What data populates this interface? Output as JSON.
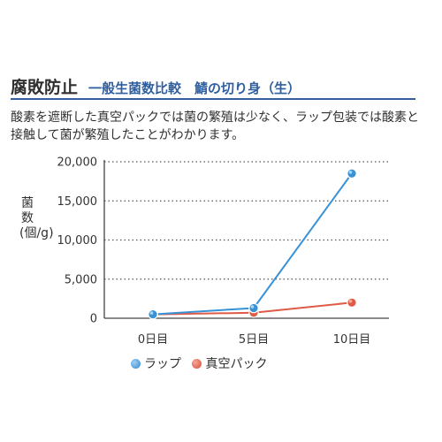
{
  "header": {
    "title": "腐敗防止",
    "subtitle": "一般生菌数比較　鯖の切り身（生）"
  },
  "description": "酸素を遮断した真空パックでは菌の繁殖は少なく、ラップ包装では酸素と接触して菌が繁殖したことがわかります。",
  "chart_data": {
    "type": "line",
    "title": "",
    "xlabel": "",
    "ylabel": "菌数(個/g)",
    "categories": [
      "0日目",
      "5日目",
      "10日目"
    ],
    "ylim": [
      0,
      20000
    ],
    "y_ticks": [
      "0",
      "5,000",
      "10,000",
      "15,000",
      "20,000"
    ],
    "y_tick_values": [
      0,
      5000,
      10000,
      15000,
      20000
    ],
    "grid": "horizontal dotted",
    "legend_position": "bottom",
    "series": [
      {
        "name": "ラップ",
        "values": [
          500,
          1300,
          18500
        ],
        "color": "#3a92d6"
      },
      {
        "name": "真空パック",
        "values": [
          500,
          700,
          2000
        ],
        "color": "#e05a45"
      }
    ]
  }
}
